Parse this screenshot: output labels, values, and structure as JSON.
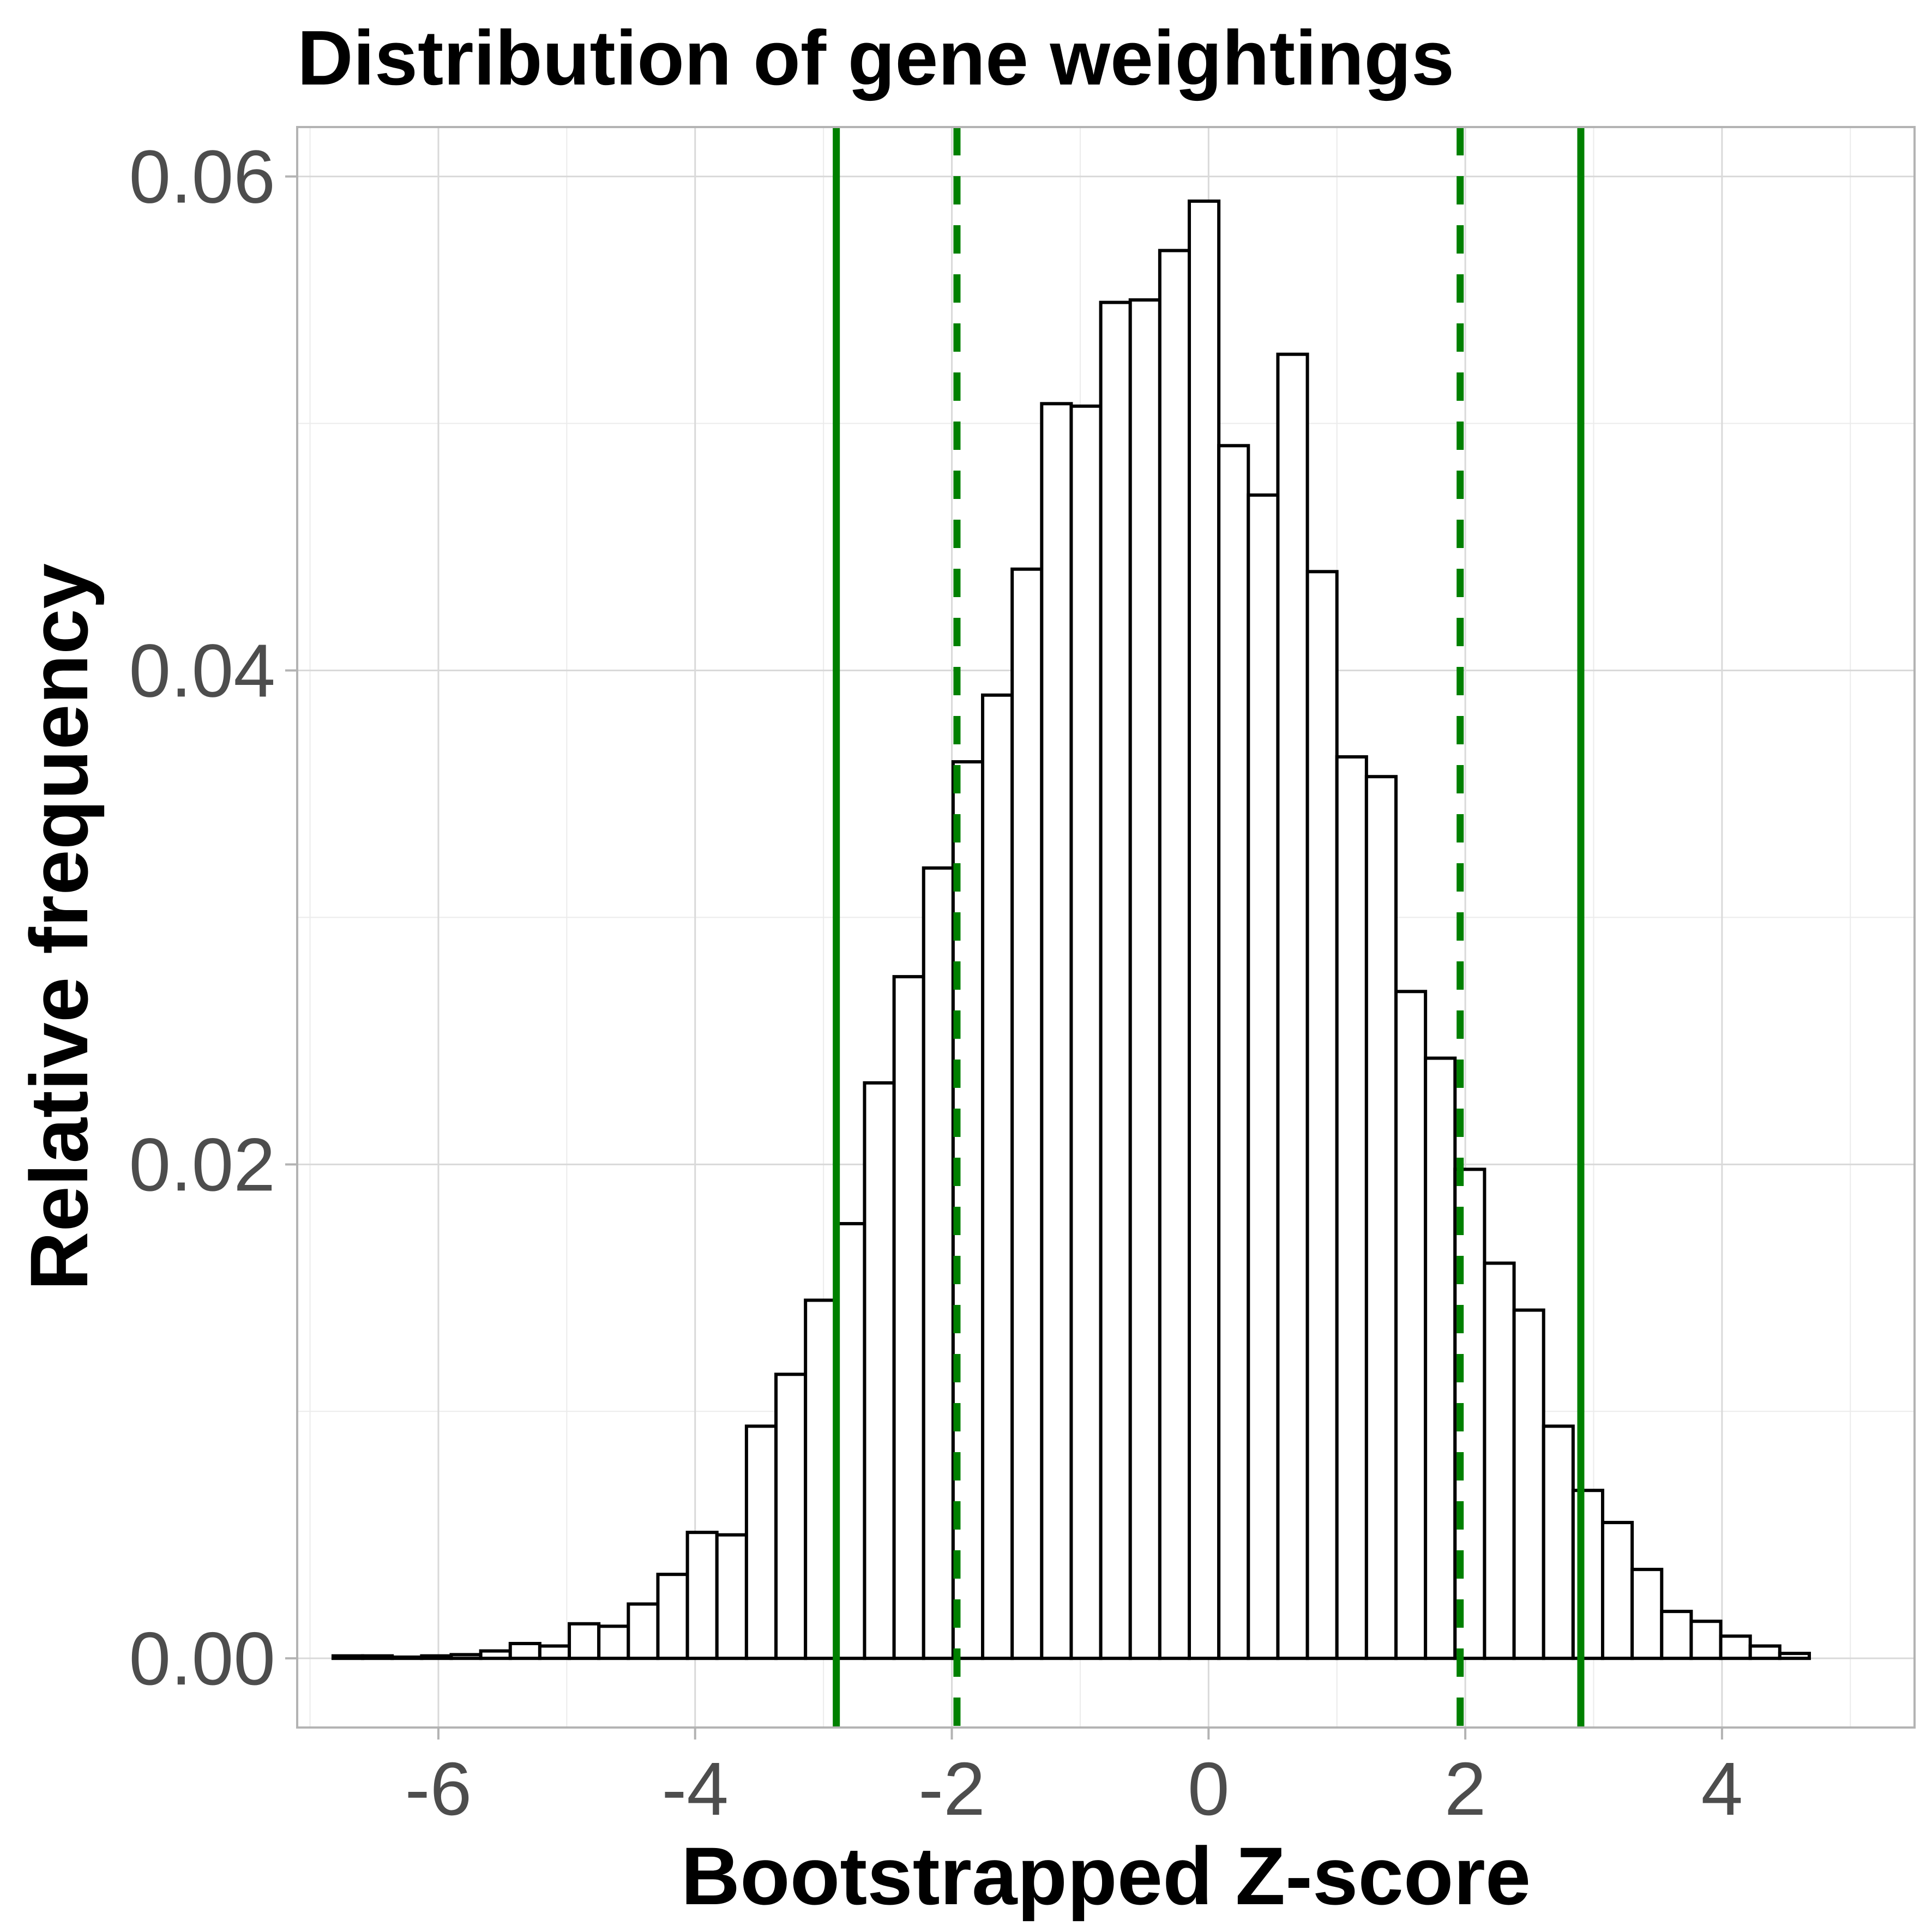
{
  "chart_data": {
    "type": "bar",
    "title": "Distribution of gene weightings",
    "xlabel": "Bootstrapped Z-score",
    "ylabel": "Relative frequency",
    "xlim": [
      -7.1,
      5.5
    ],
    "ylim": [
      -0.0028,
      0.062
    ],
    "x_ticks": [
      -6,
      -4,
      -2,
      0,
      2,
      4
    ],
    "x_tick_labels": [
      "-6",
      "-4",
      "-2",
      "0",
      "2",
      "4"
    ],
    "y_ticks": [
      0,
      0.02,
      0.04,
      0.06
    ],
    "y_tick_labels": [
      "0.00",
      "0.02",
      "0.04",
      "0.06"
    ],
    "grid": true,
    "bin_width": 0.23,
    "bin_start": -6.82,
    "values": [
      0.0001,
      0.0001,
      5e-05,
      0.0001,
      0.00015,
      0.0003,
      0.0006,
      0.0005,
      0.0014,
      0.0013,
      0.0022,
      0.0034,
      0.0051,
      0.005,
      0.0094,
      0.0115,
      0.0145,
      0.0176,
      0.0233,
      0.0276,
      0.032,
      0.0363,
      0.039,
      0.0441,
      0.0508,
      0.0507,
      0.0549,
      0.055,
      0.057,
      0.059,
      0.0491,
      0.0471,
      0.0528,
      0.044,
      0.0365,
      0.0357,
      0.027,
      0.0243,
      0.0198,
      0.016,
      0.0141,
      0.0094,
      0.0068,
      0.0055,
      0.0036,
      0.0019,
      0.0015,
      0.0009,
      0.0005,
      0.0002
    ],
    "reference_lines": [
      {
        "x": -2.9,
        "style": "solid",
        "color": "#008000"
      },
      {
        "x": -1.96,
        "style": "dashed",
        "color": "#008000"
      },
      {
        "x": 1.96,
        "style": "dashed",
        "color": "#008000"
      },
      {
        "x": 2.9,
        "style": "solid",
        "color": "#008000"
      }
    ]
  }
}
